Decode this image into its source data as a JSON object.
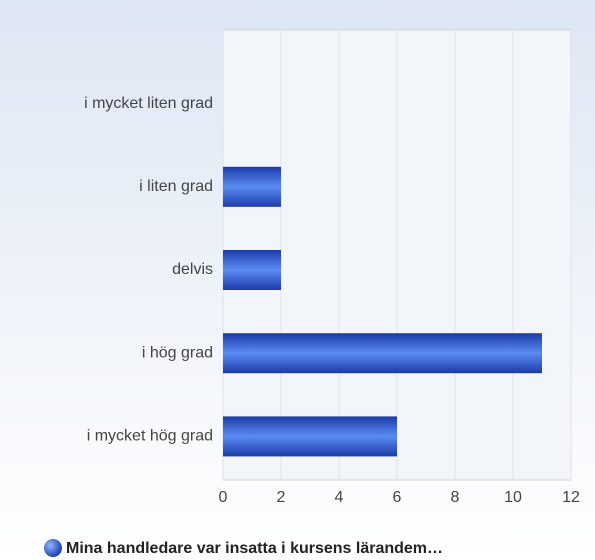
{
  "chart_data": {
    "type": "bar",
    "orientation": "horizontal",
    "categories": [
      "i mycket liten grad",
      "i liten grad",
      "delvis",
      "i hög grad",
      "i mycket hög grad"
    ],
    "series": [
      {
        "name": "Mina handledare var insatta i kursens lärandem…",
        "color": "#2f5fd8",
        "values": [
          0,
          2,
          2,
          11,
          6
        ]
      }
    ],
    "xlim": [
      0,
      12
    ],
    "xticks": [
      0,
      2,
      4,
      6,
      8,
      10,
      12
    ],
    "grid": true,
    "legend": "bottom"
  }
}
